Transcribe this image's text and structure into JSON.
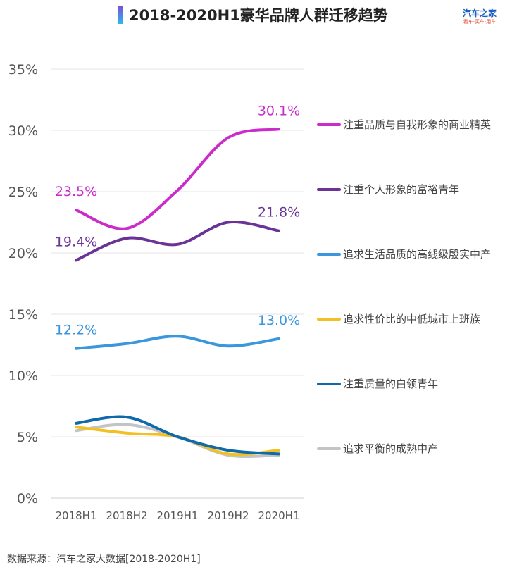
{
  "header": {
    "title": "2018-2020H1豪华品牌人群迁移趋势",
    "logo_main": "汽车之家",
    "logo_sub": "看车·买车·用车"
  },
  "source_text": "数据来源：汽车之家大数据[2018-2020H1]",
  "chart_data": {
    "type": "line",
    "title": "2018-2020H1豪华品牌人群迁移趋势",
    "xlabel": "",
    "ylabel": "",
    "categories": [
      "2018H1",
      "2018H2",
      "2019H1",
      "2019H2",
      "2020H1"
    ],
    "ylim": [
      0,
      35
    ],
    "yticks": [
      "0%",
      "5%",
      "10%",
      "15%",
      "20%",
      "25%",
      "30%",
      "35%"
    ],
    "grid": true,
    "legend_position": "right",
    "series": [
      {
        "name": "注重品质与自我形象的商业精英",
        "color": "#cc2bcc",
        "values": [
          23.5,
          22.0,
          25.1,
          29.4,
          30.1
        ],
        "labels": [
          "23.5%",
          null,
          null,
          null,
          "30.1%"
        ]
      },
      {
        "name": "注重个人形象的富裕青年",
        "color": "#6a3496",
        "values": [
          19.4,
          21.2,
          20.7,
          22.5,
          21.8
        ],
        "labels": [
          "19.4%",
          null,
          null,
          null,
          "21.8%"
        ]
      },
      {
        "name": "追求生活品质的高线级殷实中产",
        "color": "#3a96dd",
        "values": [
          12.2,
          12.6,
          13.2,
          12.4,
          13.0
        ],
        "labels": [
          "12.2%",
          null,
          null,
          null,
          "13.0%"
        ]
      },
      {
        "name": "追求性价比的中低城市上班族",
        "color": "#f2c121",
        "values": [
          5.8,
          5.3,
          5.0,
          3.6,
          3.9
        ],
        "labels": [
          null,
          null,
          null,
          null,
          null
        ]
      },
      {
        "name": "注重质量的白领青年",
        "color": "#1069a8",
        "values": [
          6.1,
          6.6,
          5.0,
          3.9,
          3.6
        ],
        "labels": [
          null,
          null,
          null,
          null,
          null
        ]
      },
      {
        "name": "追求平衡的成熟中产",
        "color": "#c4c4c4",
        "values": [
          5.5,
          6.0,
          5.0,
          3.5,
          3.5
        ],
        "labels": [
          null,
          null,
          null,
          null,
          null
        ]
      }
    ]
  }
}
